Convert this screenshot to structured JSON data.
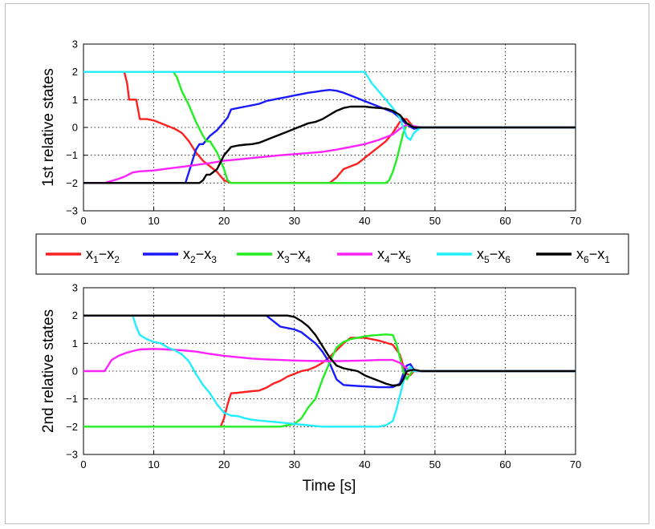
{
  "legend": {
    "placement": "between-panels",
    "entries": [
      {
        "main": "x",
        "sub1": "1",
        "sep": "−",
        "main2": "x",
        "sub2": "2",
        "color": "#ff2020"
      },
      {
        "main": "x",
        "sub1": "2",
        "sep": "−",
        "main2": "x",
        "sub2": "3",
        "color": "#1a1aff"
      },
      {
        "main": "x",
        "sub1": "3",
        "sep": "−",
        "main2": "x",
        "sub2": "4",
        "color": "#22ee22"
      },
      {
        "main": "x",
        "sub1": "4",
        "sep": "−",
        "main2": "x",
        "sub2": "5",
        "color": "#ff22ff"
      },
      {
        "main": "x",
        "sub1": "5",
        "sep": "−",
        "main2": "x",
        "sub2": "6",
        "color": "#22eeff"
      },
      {
        "main": "x",
        "sub1": "6",
        "sep": "−",
        "main2": "x",
        "sub2": "1",
        "color": "#000000"
      }
    ]
  },
  "chart_data": [
    {
      "type": "line",
      "ylabel": "1st relative states",
      "xlabel": "",
      "xlim": [
        0,
        70
      ],
      "ylim": [
        -3,
        3
      ],
      "xticks": [
        0,
        10,
        20,
        30,
        40,
        50,
        60,
        70
      ],
      "yticks": [
        3,
        2,
        1,
        0,
        -1,
        -2,
        -3
      ],
      "grid": true,
      "series": [
        {
          "color": "#ff2020",
          "x": [
            5.8,
            6.2,
            6.5,
            7.5,
            7.8,
            8,
            9,
            10,
            11,
            12,
            13,
            14,
            15,
            16,
            17,
            18,
            19,
            20,
            21,
            25,
            30,
            33,
            34,
            35,
            36,
            37,
            38,
            39,
            40,
            41,
            42,
            43,
            44,
            44.5,
            45,
            45.5,
            46,
            46.5,
            47,
            48,
            50,
            70
          ],
          "y": [
            2,
            1.6,
            1.0,
            1.0,
            0.6,
            0.3,
            0.3,
            0.25,
            0.15,
            0.05,
            -0.05,
            -0.2,
            -0.5,
            -0.9,
            -1.2,
            -1.4,
            -1.6,
            -1.9,
            -2,
            -2,
            -2,
            -2,
            -2,
            -2,
            -1.8,
            -1.5,
            -1.4,
            -1.3,
            -1.1,
            -0.9,
            -0.7,
            -0.5,
            -0.2,
            0,
            0.2,
            0.3,
            0.3,
            0.15,
            0,
            0,
            0,
            0
          ]
        },
        {
          "color": "#1a1aff",
          "x": [
            0,
            14.5,
            15,
            15.5,
            16,
            16.5,
            17,
            18,
            19,
            20,
            20.5,
            21,
            22,
            23,
            24,
            25,
            26,
            27,
            28,
            29,
            30,
            31,
            32,
            33,
            34,
            35,
            36,
            37,
            38,
            39,
            40,
            41,
            42,
            43,
            44,
            45,
            46,
            47,
            48,
            50,
            70
          ],
          "y": [
            -2,
            -2,
            -1.6,
            -1.2,
            -0.8,
            -0.6,
            -0.6,
            -0.3,
            -0.1,
            0.2,
            0.35,
            0.65,
            0.7,
            0.75,
            0.8,
            0.85,
            0.95,
            1.0,
            1.05,
            1.1,
            1.15,
            1.2,
            1.25,
            1.28,
            1.32,
            1.35,
            1.32,
            1.25,
            1.15,
            1.05,
            0.95,
            0.85,
            0.75,
            0.65,
            0.55,
            0.35,
            0.1,
            -0.05,
            0,
            0,
            0
          ]
        },
        {
          "color": "#22ee22",
          "x": [
            12.8,
            13.3,
            14,
            15,
            16,
            17,
            17.5,
            18,
            19,
            20,
            20.5,
            21,
            25,
            30,
            35,
            40,
            43,
            43.5,
            44,
            44.5,
            45,
            45.5,
            46,
            46.5,
            47,
            48,
            50,
            70
          ],
          "y": [
            2,
            1.8,
            1.3,
            0.8,
            0.2,
            -0.3,
            -0.5,
            -0.5,
            -0.9,
            -1.5,
            -1.9,
            -2,
            -2,
            -2,
            -2,
            -2,
            -2,
            -1.9,
            -1.6,
            -1.2,
            -0.7,
            -0.2,
            0.1,
            0.1,
            0,
            0,
            0,
            0
          ]
        },
        {
          "color": "#ff22ff",
          "x": [
            0,
            3,
            5,
            6,
            7,
            8,
            10,
            12,
            14,
            16,
            18,
            20,
            22,
            24,
            26,
            28,
            30,
            32,
            34,
            36,
            38,
            40,
            42,
            44,
            45,
            46,
            47,
            48,
            50,
            70
          ],
          "y": [
            -2,
            -2,
            -1.85,
            -1.75,
            -1.62,
            -1.58,
            -1.55,
            -1.48,
            -1.42,
            -1.35,
            -1.28,
            -1.2,
            -1.15,
            -1.1,
            -1.05,
            -1.0,
            -0.96,
            -0.92,
            -0.88,
            -0.8,
            -0.7,
            -0.6,
            -0.45,
            -0.25,
            -0.05,
            0.1,
            0.05,
            0,
            0,
            0
          ]
        },
        {
          "color": "#22eeff",
          "x": [
            0,
            40,
            40.5,
            41,
            42,
            43,
            44,
            45,
            45.5,
            46,
            46.5,
            47,
            48,
            50,
            70
          ],
          "y": [
            2,
            2,
            1.8,
            1.6,
            1.3,
            1.0,
            0.7,
            0.35,
            0,
            -0.35,
            -0.45,
            -0.2,
            0,
            0,
            0
          ]
        },
        {
          "color": "#000000",
          "x": [
            0,
            16.5,
            17,
            17.5,
            18,
            19,
            20,
            21,
            22,
            23,
            24,
            25,
            26,
            27,
            28,
            29,
            30,
            31,
            32,
            33,
            34,
            35,
            36,
            37,
            38,
            39,
            40,
            41,
            42,
            43,
            44,
            45,
            46,
            47,
            48,
            50,
            70
          ],
          "y": [
            -2,
            -2,
            -1.9,
            -1.7,
            -1.7,
            -1.5,
            -1.0,
            -0.7,
            -0.65,
            -0.62,
            -0.6,
            -0.55,
            -0.45,
            -0.35,
            -0.25,
            -0.15,
            -0.05,
            0.05,
            0.15,
            0.2,
            0.3,
            0.45,
            0.6,
            0.7,
            0.75,
            0.75,
            0.75,
            0.72,
            0.7,
            0.68,
            0.6,
            0.45,
            0.15,
            0,
            0,
            0,
            0
          ]
        }
      ]
    },
    {
      "type": "line",
      "ylabel": "2nd relative states",
      "xlabel": "Time [s]",
      "xlim": [
        0,
        70
      ],
      "ylim": [
        -3,
        3
      ],
      "xticks": [
        0,
        10,
        20,
        30,
        40,
        50,
        60,
        70
      ],
      "yticks": [
        3,
        2,
        1,
        0,
        -1,
        -2,
        -3
      ],
      "grid": true,
      "series": [
        {
          "color": "#ff2020",
          "x": [
            19.5,
            20,
            20.5,
            21,
            22,
            23,
            24,
            25,
            26,
            27,
            28,
            29,
            30,
            31,
            32,
            33,
            34,
            35,
            36,
            37,
            38,
            40,
            42,
            44,
            45,
            45.5,
            46,
            46.5,
            47,
            48,
            50,
            70
          ],
          "y": [
            -2,
            -1.7,
            -1.2,
            -0.8,
            -0.78,
            -0.75,
            -0.72,
            -0.7,
            -0.6,
            -0.45,
            -0.35,
            -0.2,
            -0.1,
            0,
            0.05,
            0.15,
            0.3,
            0.5,
            0.75,
            1.0,
            1.2,
            1.2,
            1.1,
            0.95,
            0.6,
            0.2,
            -0.1,
            -0.15,
            0,
            0,
            0,
            0
          ]
        },
        {
          "color": "#1a1aff",
          "x": [
            0,
            26,
            27,
            28,
            29,
            30,
            31,
            32,
            33,
            34,
            35,
            36,
            37,
            38,
            40,
            42,
            44,
            45,
            45.5,
            46,
            46.5,
            47,
            48,
            50,
            70
          ],
          "y": [
            2,
            2,
            1.8,
            1.6,
            1.55,
            1.5,
            1.4,
            1.2,
            1.0,
            0.7,
            0.3,
            -0.3,
            -0.5,
            -0.52,
            -0.55,
            -0.58,
            -0.58,
            -0.45,
            -0.1,
            0.2,
            0.25,
            0.05,
            0,
            0,
            0
          ]
        },
        {
          "color": "#22ee22",
          "x": [
            0,
            28,
            29,
            30,
            31,
            32,
            33,
            34,
            35,
            36,
            37,
            38,
            39,
            40,
            41,
            42,
            43,
            44,
            44.5,
            45,
            45.5,
            46,
            46.5,
            47,
            48,
            50,
            70
          ],
          "y": [
            -2,
            -2,
            -1.95,
            -1.9,
            -1.7,
            -1.3,
            -1.0,
            -0.3,
            0.3,
            0.85,
            1.05,
            1.15,
            1.2,
            1.25,
            1.28,
            1.3,
            1.32,
            1.3,
            1.0,
            0.5,
            0,
            -0.3,
            -0.1,
            0.05,
            0,
            0,
            0
          ]
        },
        {
          "color": "#ff22ff",
          "x": [
            0,
            3,
            3.5,
            4,
            5,
            6,
            7,
            8,
            10,
            12,
            14,
            16,
            18,
            20,
            22,
            24,
            26,
            28,
            30,
            32,
            34,
            36,
            38,
            40,
            42,
            44,
            45,
            46,
            47,
            48,
            50,
            70
          ],
          "y": [
            0,
            0,
            0.2,
            0.4,
            0.55,
            0.65,
            0.72,
            0.78,
            0.8,
            0.78,
            0.75,
            0.7,
            0.62,
            0.55,
            0.5,
            0.45,
            0.42,
            0.4,
            0.38,
            0.37,
            0.36,
            0.36,
            0.37,
            0.38,
            0.4,
            0.4,
            0.3,
            0.1,
            0,
            0,
            0,
            0
          ]
        },
        {
          "color": "#22eeff",
          "x": [
            7,
            7.5,
            8,
            9,
            10,
            11,
            12,
            13,
            14,
            15,
            16,
            17,
            18,
            19,
            20,
            21,
            22,
            23,
            24,
            25,
            26,
            28,
            30,
            32,
            34,
            36,
            38,
            40,
            42,
            43,
            44,
            44.5,
            45,
            45.5,
            46,
            46.5,
            47,
            48,
            50,
            70
          ],
          "y": [
            2,
            1.6,
            1.3,
            1.15,
            1.05,
            1.0,
            0.85,
            0.75,
            0.6,
            0.35,
            -0.1,
            -0.5,
            -0.8,
            -1.2,
            -1.5,
            -1.6,
            -1.62,
            -1.7,
            -1.75,
            -1.78,
            -1.8,
            -1.85,
            -1.9,
            -1.95,
            -2,
            -2,
            -2,
            -2,
            -2,
            -1.95,
            -1.8,
            -1.4,
            -0.9,
            -0.4,
            0,
            0.15,
            0,
            0,
            0,
            0
          ]
        },
        {
          "color": "#000000",
          "x": [
            0,
            29,
            30,
            31,
            32,
            33,
            34,
            35,
            36,
            37,
            38,
            39,
            40,
            41,
            42,
            43,
            44,
            45,
            45.5,
            46,
            47,
            48,
            50,
            70
          ],
          "y": [
            2,
            2,
            1.95,
            1.8,
            1.6,
            1.3,
            0.9,
            0.5,
            0.2,
            0.1,
            0.05,
            0,
            -0.15,
            -0.25,
            -0.35,
            -0.45,
            -0.52,
            -0.5,
            -0.3,
            0,
            0.05,
            0,
            0,
            0
          ]
        }
      ]
    }
  ]
}
